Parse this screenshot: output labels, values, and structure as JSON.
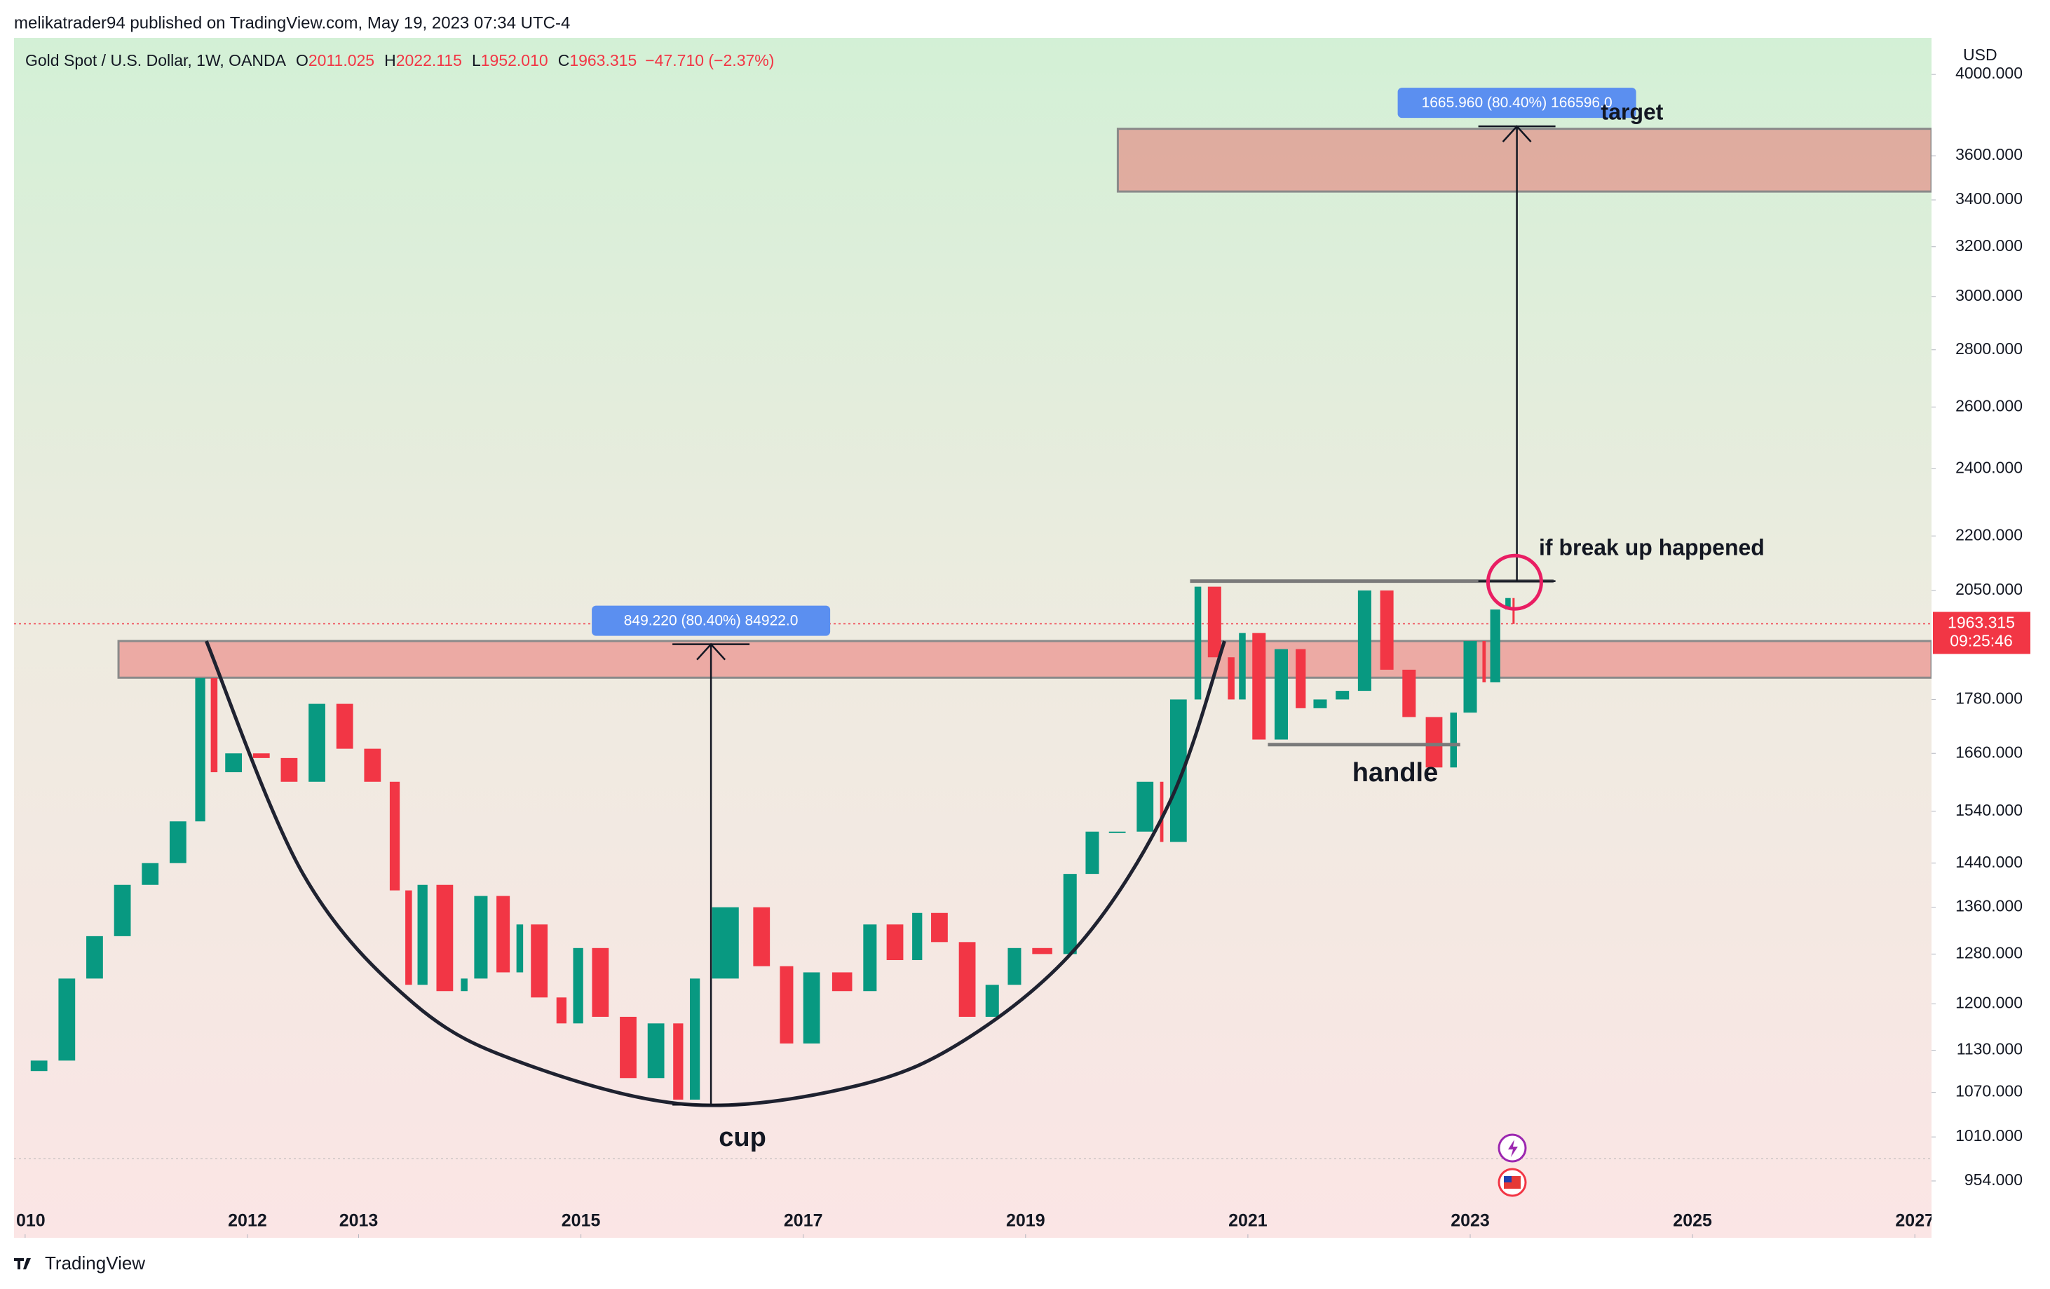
{
  "header": "melikatrader94 published on TradingView.com, May 19, 2023 07:34 UTC-4",
  "footer": "TradingView",
  "chart_data": {
    "type": "candlestick",
    "title": "Gold Spot / U.S. Dollar, 1W, OANDA",
    "quote": [
      {
        "label": "O",
        "value": "2011.025"
      },
      {
        "label": "H",
        "value": "2022.115"
      },
      {
        "label": "L",
        "value": "1952.010"
      },
      {
        "label": "C",
        "value": "1963.315"
      }
    ],
    "change": "−47.710 (−2.37%)",
    "currency": "USD",
    "last_price": {
      "value": 1963.315,
      "label": "1963.315"
    },
    "countdown": "09:25:46",
    "log_scale": true,
    "up_color": "#089981",
    "down_color": "#f23645",
    "x": [
      2010.0,
      2010.25,
      2010.5,
      2010.75,
      2011.0,
      2011.25,
      2011.5,
      2011.65,
      2011.75,
      2012.0,
      2012.25,
      2012.5,
      2012.75,
      2013.0,
      2013.25,
      2013.4,
      2013.5,
      2013.65,
      2013.9,
      2014.0,
      2014.2,
      2014.4,
      2014.5,
      2014.75,
      2014.9,
      2015.05,
      2015.3,
      2015.55,
      2015.8,
      2015.95,
      2016.1,
      2016.5,
      2016.75,
      2016.95,
      2017.2,
      2017.5,
      2017.7,
      2017.95,
      2018.1,
      2018.35,
      2018.6,
      2018.8,
      2019.0,
      2019.3,
      2019.5,
      2019.7,
      2019.95,
      2020.2,
      2020.25,
      2020.5,
      2020.6,
      2020.8,
      2020.9,
      2021.0,
      2021.2,
      2021.4,
      2021.55,
      2021.75,
      2021.95,
      2022.15,
      2022.35,
      2022.55,
      2022.8,
      2022.9,
      2023.1,
      2023.15,
      2023.3,
      2023.38,
      2023.4
    ],
    "values": [
      1100,
      1115,
      1240,
      1310,
      1400,
      1440,
      1520,
      1830,
      1620,
      1660,
      1650,
      1600,
      1770,
      1670,
      1600,
      1390,
      1230,
      1400,
      1220,
      1240,
      1380,
      1250,
      1330,
      1210,
      1170,
      1290,
      1180,
      1090,
      1170,
      1060,
      1240,
      1360,
      1260,
      1140,
      1250,
      1220,
      1330,
      1270,
      1350,
      1300,
      1180,
      1230,
      1290,
      1280,
      1420,
      1500,
      1500,
      1600,
      1480,
      1780,
      2060,
      1880,
      1780,
      1940,
      1690,
      1900,
      1760,
      1780,
      1800,
      2050,
      1850,
      1740,
      1630,
      1750,
      1920,
      1820,
      2000,
      2030,
      1963
    ],
    "xlim": [
      2009.9,
      2027.15
    ],
    "xticks": [
      {
        "value": 2010,
        "label": "010"
      },
      2012,
      2013,
      2015,
      2017,
      2019,
      2021,
      2023,
      2025,
      2027
    ],
    "ylim": [
      930,
      4194
    ],
    "yticks": [
      {
        "value": 4000,
        "label": "4000.000"
      },
      {
        "value": 3600,
        "label": "3600.000"
      },
      {
        "value": 3400,
        "label": "3400.000"
      },
      {
        "value": 3200,
        "label": "3200.000"
      },
      {
        "value": 3000,
        "label": "3000.000"
      },
      {
        "value": 2800,
        "label": "2800.000"
      },
      {
        "value": 2600,
        "label": "2600.000"
      },
      {
        "value": 2400,
        "label": "2400.000"
      },
      {
        "value": 2200,
        "label": "2200.000"
      },
      {
        "value": 2050,
        "label": "2050.000"
      },
      {
        "value": 1780,
        "label": "1780.000"
      },
      {
        "value": 1660,
        "label": "1660.000"
      },
      {
        "value": 1540,
        "label": "1540.000"
      },
      {
        "value": 1440,
        "label": "1440.000"
      },
      {
        "value": 1360,
        "label": "1360.000"
      },
      {
        "value": 1280,
        "label": "1280.000"
      },
      {
        "value": 1200,
        "label": "1200.000"
      },
      {
        "value": 1130,
        "label": "1130.000"
      },
      {
        "value": 1070,
        "label": "1070.000"
      },
      {
        "value": 1010,
        "label": "1010.000"
      },
      {
        "value": 954,
        "label": "954.000"
      }
    ],
    "zones": [
      {
        "x": [
          2010.84,
          2027.15
        ],
        "y": [
          1831,
          1920
        ]
      },
      {
        "x": [
          2019.83,
          2027.15
        ],
        "y": [
          3437,
          3728
        ]
      }
    ],
    "levels": [
      {
        "x": [
          2020.48,
          2023.75
        ],
        "y": 2075
      },
      {
        "x": [
          2021.18,
          2022.91
        ],
        "y": 1679
      }
    ],
    "measures": [
      {
        "x": 2016.17,
        "y": [
          1053,
          1912
        ],
        "label": "849.220 (80.40%) 84922.0"
      },
      {
        "x": 2023.42,
        "y": [
          2075,
          3740
        ],
        "label": "1665.960 (80.40%) 166596.0"
      }
    ],
    "cup": {
      "x": [
        2011.63,
        2012.5,
        2013.5,
        2014.5,
        2016.0,
        2017.5,
        2018.5,
        2019.5,
        2020.3,
        2020.79
      ],
      "y": [
        1920,
        1420,
        1200,
        1110,
        1053,
        1080,
        1150,
        1300,
        1560,
        1920
      ]
    },
    "circle": {
      "x": 2023.4,
      "y": 2072
    },
    "annotations": [
      "target",
      "if break up happened",
      "handle",
      "cup"
    ]
  }
}
